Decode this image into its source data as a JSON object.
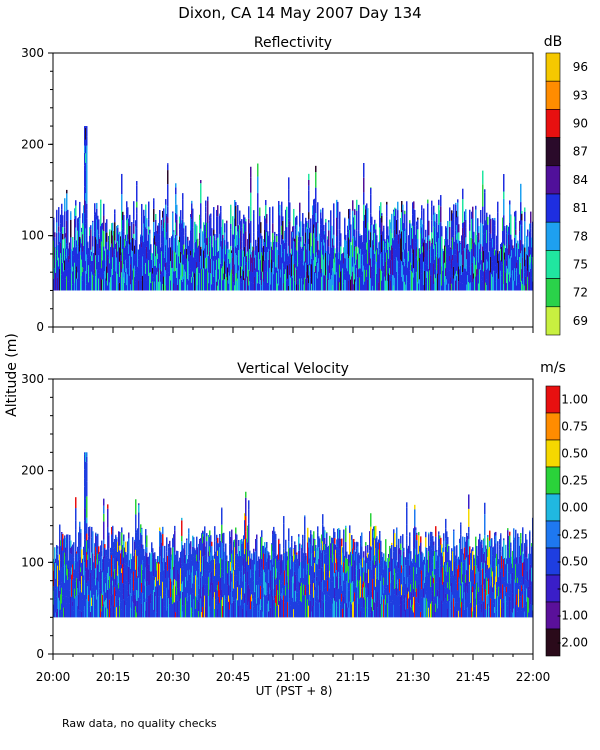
{
  "page": {
    "title": "Dixon, CA 14 May 2007  Day 134",
    "y_axis_label": "Altitude (m)",
    "x_axis_label": "UT  (PST + 8)",
    "footnote": "Raw data, no quality checks"
  },
  "chart_data": [
    {
      "type": "heatmap",
      "title": "Reflectivity",
      "ylabel": "Altitude (m)",
      "xlabel": "UT  (PST + 8)",
      "x_ticks": [
        "20:00",
        "20:15",
        "20:30",
        "20:45",
        "21:00",
        "21:15",
        "21:30",
        "21:45",
        "22:00"
      ],
      "xlim_minutes_after_2000UT": [
        0,
        120
      ],
      "y_ticks": [
        0,
        100,
        200,
        300
      ],
      "ylim": [
        0,
        300
      ],
      "colorbar": {
        "unit": "dB",
        "labels": [
          "96",
          "93",
          "90",
          "87",
          "84",
          "81",
          "78",
          "75",
          "72",
          "69"
        ],
        "colors": [
          "#f5c800",
          "#ff8c00",
          "#e81010",
          "#2a0a2a",
          "#50109a",
          "#1e2ee0",
          "#1ea0f0",
          "#20e6a0",
          "#2ad24a",
          "#c8f040"
        ]
      },
      "data_summary": {
        "echo_base_altitude_m": 40,
        "typical_echo_top_m": [
          80,
          140
        ],
        "max_echo_top_m": 220,
        "max_echo_top_time": "20:08"
      }
    },
    {
      "type": "heatmap",
      "title": "Vertical Velocity",
      "ylabel": "Altitude (m)",
      "xlabel": "UT  (PST + 8)",
      "x_ticks": [
        "20:00",
        "20:15",
        "20:30",
        "20:45",
        "21:00",
        "21:15",
        "21:30",
        "21:45",
        "22:00"
      ],
      "xlim_minutes_after_2000UT": [
        0,
        120
      ],
      "y_ticks": [
        0,
        100,
        200,
        300
      ],
      "ylim": [
        0,
        300
      ],
      "colorbar": {
        "unit": "m/s",
        "labels": [
          "1.00",
          "0.75",
          "0.50",
          "0.25",
          "0.00",
          "-0.25",
          "-0.50",
          "-0.75",
          "-1.00",
          "-2.00"
        ],
        "colors": [
          "#e81010",
          "#ff8c00",
          "#f5d800",
          "#2ad23a",
          "#20b8e0",
          "#1e78f0",
          "#1e3ee0",
          "#3a1ec8",
          "#5a109a",
          "#2a0a1a"
        ]
      },
      "data_summary": {
        "echo_base_altitude_m": 40,
        "typical_echo_top_m": [
          100,
          140
        ],
        "max_echo_top_m": 220,
        "max_echo_top_time": "20:08"
      }
    }
  ]
}
